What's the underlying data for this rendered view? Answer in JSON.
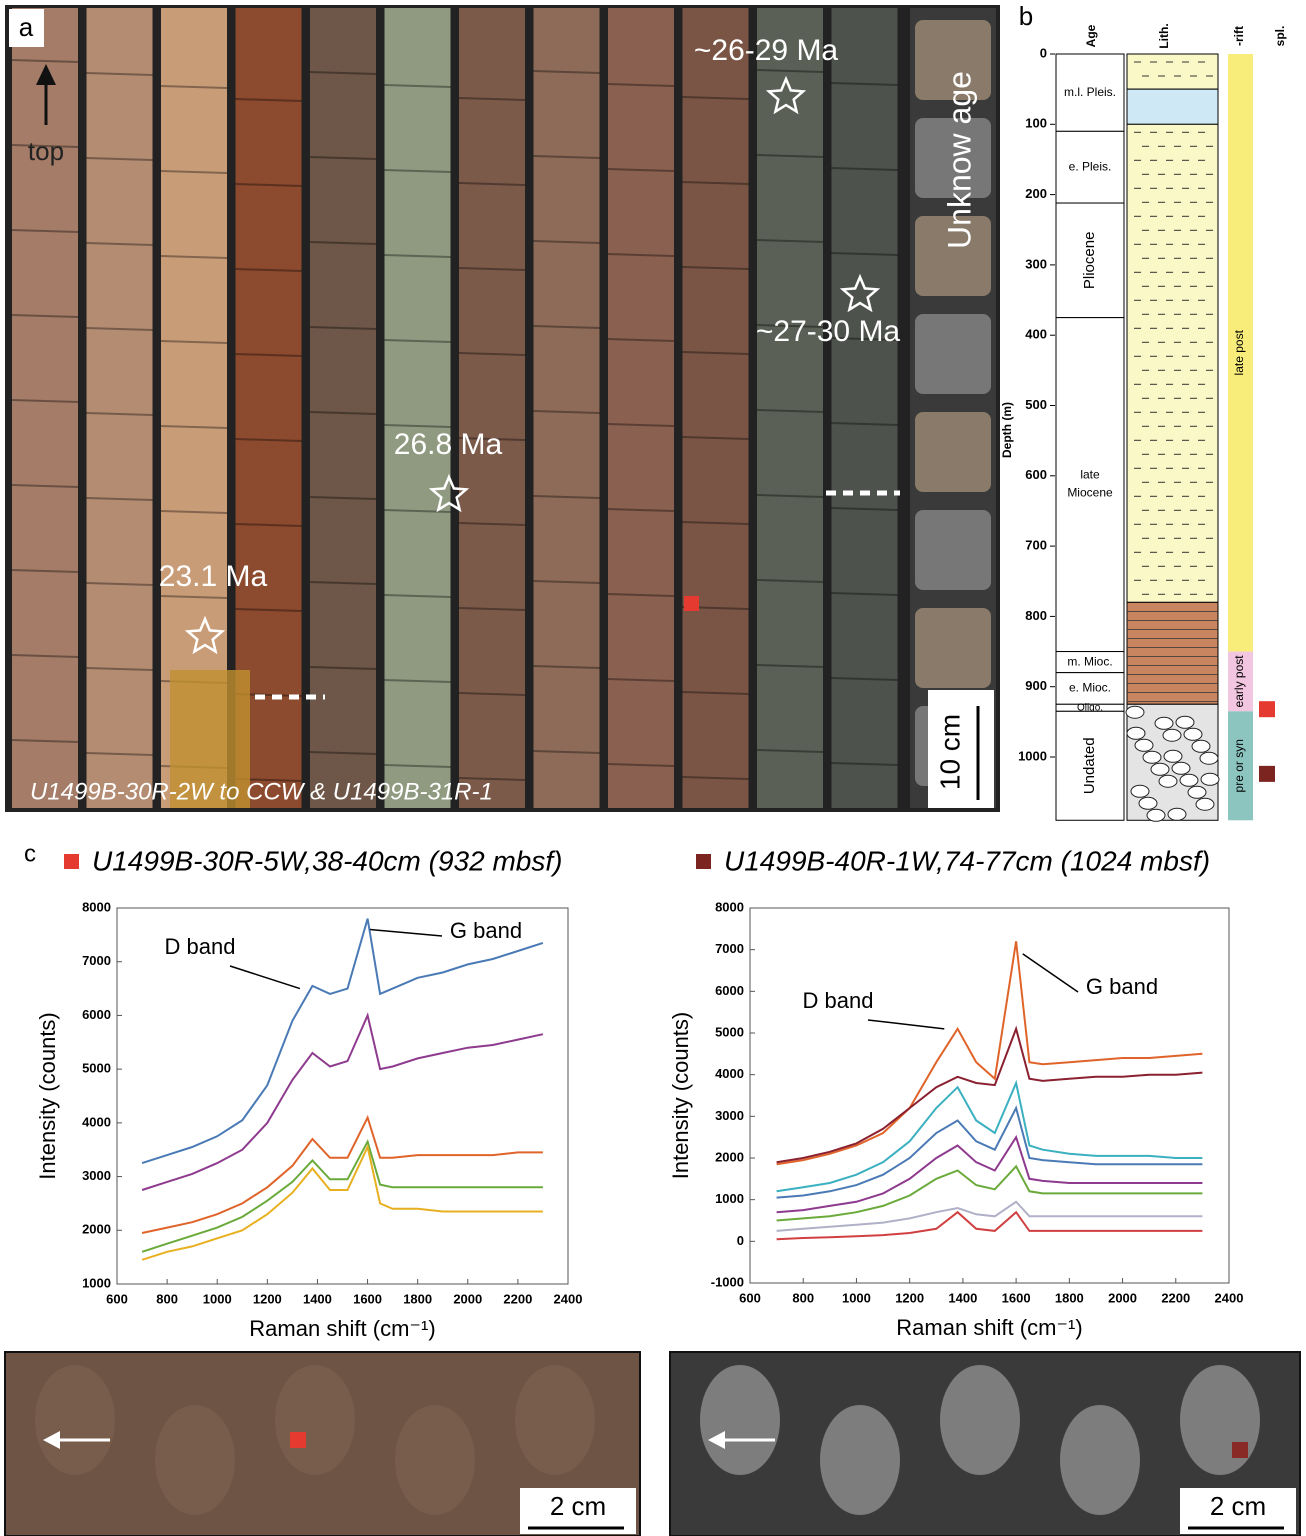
{
  "panel_a": {
    "label": "a",
    "arrow_label": "top",
    "ages": [
      "~26-29 Ma",
      "~27-30 Ma",
      "26.8 Ma",
      "23.1 Ma"
    ],
    "unknown": "Unknow age",
    "scale": "10 cm",
    "caption": "U1499B-30R-2W to CCW  & U1499B-31R-1"
  },
  "panel_b": {
    "label": "b",
    "headers": [
      "Age",
      "Lith.",
      "-rift",
      "spl."
    ],
    "axis_label": "Depth (m)",
    "ylim": [
      0,
      1090
    ],
    "yticks": [
      0,
      100,
      200,
      300,
      400,
      500,
      600,
      700,
      800,
      900,
      1000
    ],
    "age_units": [
      {
        "name": "m.l. Pleis.",
        "top": 0,
        "base": 110
      },
      {
        "name": "e. Pleis.",
        "top": 110,
        "base": 212
      },
      {
        "name": "Pliocene",
        "top": 212,
        "base": 375
      },
      {
        "name": "late Miocene",
        "top": 375,
        "base": 850
      },
      {
        "name": "m. Mioc.",
        "top": 850,
        "base": 880
      },
      {
        "name": "e. Mioc.",
        "top": 880,
        "base": 925
      },
      {
        "name": "Oligo.",
        "top": 925,
        "base": 935
      },
      {
        "name": "Undated",
        "top": 935,
        "base": 1090
      }
    ],
    "lithology": [
      {
        "top": 0,
        "base": 50,
        "color": "#fbf8c8"
      },
      {
        "top": 50,
        "base": 100,
        "color": "#cfe8f5"
      },
      {
        "top": 100,
        "base": 780,
        "color": "#fbf8c8"
      },
      {
        "top": 780,
        "base": 925,
        "color": "#c98560"
      },
      {
        "top": 925,
        "base": 1090,
        "color": "#e4e4e4"
      }
    ],
    "rift": [
      {
        "name": "late post",
        "top": 0,
        "base": 850,
        "color": "#f8ec7a"
      },
      {
        "name": "early post",
        "top": 850,
        "base": 935,
        "color": "#f2c6e0"
      },
      {
        "name": "pre or syn",
        "top": 935,
        "base": 1090,
        "color": "#8cc4c0"
      }
    ],
    "samples": [
      {
        "depth": 932,
        "color": "#e53a2f"
      },
      {
        "depth": 1024,
        "color": "#7b2420"
      }
    ]
  },
  "panel_c_label": "c",
  "chart_data": [
    {
      "type": "line",
      "title": "U1499B-30R-5W,38-40cm (932 mbsf)",
      "marker_color": "#e53a2f",
      "x_label": "Raman shift (cm⁻¹)",
      "y_label": "Intensity (counts)",
      "annotations": [
        "D band",
        "G band"
      ],
      "xlim": [
        600,
        2400
      ],
      "xticks": [
        600,
        800,
        1000,
        1200,
        1400,
        1600,
        1800,
        2000,
        2200,
        2400
      ],
      "ylim": [
        1000,
        8000
      ],
      "yticks": [
        1000,
        2000,
        3000,
        4000,
        5000,
        6000,
        7000,
        8000
      ],
      "x": [
        700,
        800,
        900,
        1000,
        1100,
        1200,
        1300,
        1380,
        1450,
        1520,
        1600,
        1650,
        1700,
        1800,
        1900,
        2000,
        2100,
        2200,
        2300
      ],
      "series": [
        {
          "color": "#4a7ab5",
          "values": [
            3250,
            3400,
            3550,
            3750,
            4050,
            4700,
            5900,
            6550,
            6400,
            6500,
            7800,
            6400,
            6500,
            6700,
            6800,
            6950,
            7050,
            7200,
            7350
          ]
        },
        {
          "color": "#8e3a8e",
          "values": [
            2750,
            2900,
            3050,
            3250,
            3500,
            4000,
            4800,
            5300,
            5050,
            5150,
            6000,
            5000,
            5050,
            5200,
            5300,
            5400,
            5450,
            5550,
            5650
          ]
        },
        {
          "color": "#e0642a",
          "values": [
            1950,
            2050,
            2150,
            2300,
            2500,
            2800,
            3200,
            3700,
            3350,
            3350,
            4100,
            3350,
            3350,
            3400,
            3400,
            3400,
            3400,
            3450,
            3450
          ]
        },
        {
          "color": "#6aaa3a",
          "values": [
            1600,
            1750,
            1900,
            2050,
            2250,
            2550,
            2900,
            3300,
            2950,
            2950,
            3650,
            2850,
            2800,
            2800,
            2800,
            2800,
            2800,
            2800,
            2800
          ]
        },
        {
          "color": "#e8b020",
          "values": [
            1450,
            1600,
            1700,
            1850,
            2000,
            2300,
            2700,
            3150,
            2750,
            2750,
            3550,
            2500,
            2400,
            2400,
            2350,
            2350,
            2350,
            2350,
            2350
          ]
        }
      ]
    },
    {
      "type": "line",
      "title": "U1499B-40R-1W,74-77cm (1024 mbsf)",
      "marker_color": "#7b2420",
      "x_label": "Raman shift (cm⁻¹)",
      "y_label": "Intensity (counts)",
      "annotations": [
        "D band",
        "G band"
      ],
      "xlim": [
        600,
        2400
      ],
      "xticks": [
        600,
        800,
        1000,
        1200,
        1400,
        1600,
        1800,
        2000,
        2200,
        2400
      ],
      "ylim": [
        -1000,
        8000
      ],
      "yticks": [
        -1000,
        0,
        1000,
        2000,
        3000,
        4000,
        5000,
        6000,
        7000,
        8000
      ],
      "x": [
        700,
        800,
        900,
        1000,
        1100,
        1200,
        1300,
        1380,
        1450,
        1520,
        1600,
        1650,
        1700,
        1800,
        1900,
        2000,
        2100,
        2200,
        2300
      ],
      "series": [
        {
          "color": "#e0642a",
          "values": [
            1850,
            1950,
            2100,
            2300,
            2600,
            3200,
            4300,
            5100,
            4300,
            3900,
            7200,
            4300,
            4250,
            4300,
            4350,
            4400,
            4400,
            4450,
            4500
          ]
        },
        {
          "color": "#8a2030",
          "values": [
            1900,
            2000,
            2150,
            2350,
            2700,
            3200,
            3700,
            3950,
            3800,
            3750,
            5100,
            3900,
            3850,
            3900,
            3950,
            3950,
            4000,
            4000,
            4050
          ]
        },
        {
          "color": "#3ab0c0",
          "values": [
            1200,
            1300,
            1400,
            1600,
            1900,
            2400,
            3200,
            3700,
            2900,
            2600,
            3800,
            2300,
            2200,
            2100,
            2050,
            2050,
            2050,
            2000,
            2000
          ]
        },
        {
          "color": "#4a7ab5",
          "values": [
            1050,
            1100,
            1200,
            1350,
            1600,
            2000,
            2600,
            2900,
            2400,
            2200,
            3200,
            2000,
            1950,
            1900,
            1850,
            1850,
            1850,
            1850,
            1850
          ]
        },
        {
          "color": "#8e3a8e",
          "values": [
            700,
            750,
            850,
            950,
            1150,
            1500,
            2000,
            2300,
            1900,
            1700,
            2500,
            1500,
            1450,
            1400,
            1400,
            1400,
            1400,
            1400,
            1400
          ]
        },
        {
          "color": "#6aaa3a",
          "values": [
            500,
            550,
            600,
            700,
            850,
            1100,
            1500,
            1700,
            1350,
            1250,
            1800,
            1200,
            1150,
            1150,
            1150,
            1150,
            1150,
            1150,
            1150
          ]
        },
        {
          "color": "#b0b0c8",
          "values": [
            250,
            300,
            350,
            400,
            450,
            550,
            700,
            800,
            650,
            600,
            950,
            600,
            600,
            600,
            600,
            600,
            600,
            600,
            600
          ]
        },
        {
          "color": "#d04040",
          "values": [
            50,
            80,
            100,
            120,
            150,
            200,
            300,
            700,
            300,
            250,
            700,
            250,
            250,
            250,
            250,
            250,
            250,
            250,
            250
          ]
        }
      ]
    }
  ],
  "photos": {
    "scales": [
      "2 cm",
      "2 cm"
    ]
  }
}
